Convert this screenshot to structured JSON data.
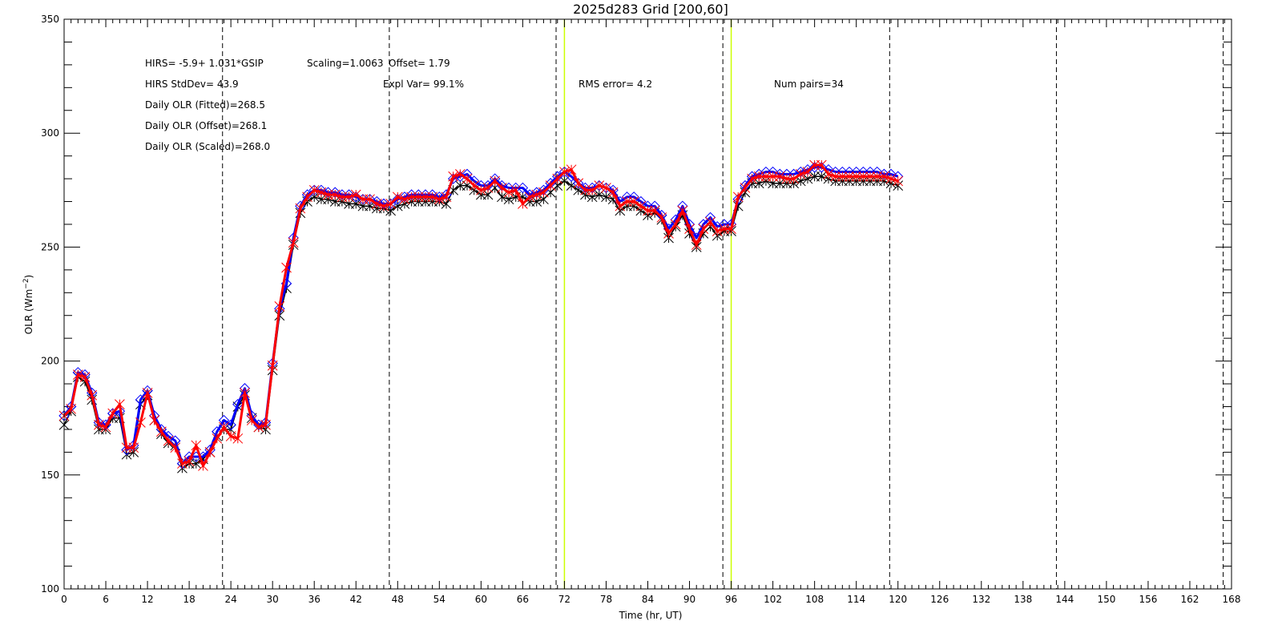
{
  "chart_data": {
    "type": "line",
    "title": "2025d283 Grid [200,60]",
    "xlabel": "Time (hr, UT)",
    "ylabel_main": "OLR (Wm",
    "ylabel_sup": "−2",
    "ylabel_close": ")",
    "xlim": [
      0,
      168
    ],
    "ylim": [
      100,
      350
    ],
    "xticks": [
      0,
      6,
      12,
      18,
      24,
      30,
      36,
      42,
      48,
      54,
      60,
      66,
      72,
      78,
      84,
      90,
      96,
      102,
      108,
      114,
      120,
      126,
      132,
      138,
      144,
      150,
      156,
      162,
      168
    ],
    "yticks": [
      100,
      150,
      200,
      250,
      300,
      350
    ],
    "grid": false,
    "dashed_vlines": [
      22.8,
      46.8,
      70.8,
      94.8,
      118.8,
      142.8,
      166.8
    ],
    "yellow_vlines": [
      72,
      96
    ],
    "colors": {
      "black": "#000000",
      "blue": "#0000ff",
      "red": "#ff0000",
      "yellow": "#ccff00"
    },
    "annotations": {
      "line1_a": "HIRS=   -5.9+  1.031*GSIP",
      "line1_b": "Scaling=1.0063",
      "line1_c": "Offset=  1.79",
      "stddev": "HIRS StdDev= 43.9",
      "explvar": "Expl Var= 99.1%",
      "rms": "RMS error=  4.2",
      "numpairs": "Num pairs=34",
      "fitted": "Daily OLR (Fitted)=268.5",
      "offset": "Daily OLR (Offset)=268.1",
      "scaled": "Daily OLR (Scaled)=268.0"
    },
    "series": [
      {
        "marker": "asterisk",
        "color": "black",
        "x": [
          0,
          1,
          2,
          3,
          4,
          5,
          6,
          7,
          8,
          9,
          10,
          11,
          12,
          13,
          14,
          15,
          16,
          17,
          18,
          19,
          20,
          21,
          22,
          23,
          24,
          25,
          26,
          27,
          28,
          29,
          30,
          31,
          32,
          33,
          34,
          35,
          36,
          37,
          38,
          39,
          40,
          41,
          42,
          43,
          44,
          45,
          46,
          47,
          48,
          49,
          50,
          51,
          52,
          53,
          54,
          55,
          56,
          57,
          58,
          59,
          60,
          61,
          62,
          63,
          64,
          65,
          66,
          67,
          68,
          69,
          70,
          71,
          72,
          73,
          74,
          75,
          76,
          77,
          78,
          79,
          80,
          81,
          82,
          83,
          84,
          85,
          86,
          87,
          88,
          89,
          90,
          91,
          92,
          93,
          94,
          95,
          96,
          97,
          98,
          99,
          100,
          101,
          102,
          103,
          104,
          105,
          106,
          107,
          108,
          109,
          110,
          111,
          112,
          113,
          114,
          115,
          116,
          117,
          118,
          119,
          120
        ],
        "y": [
          172,
          178,
          193,
          191,
          183,
          170,
          170,
          175,
          175,
          159,
          160,
          181,
          185,
          174,
          168,
          164,
          163,
          153,
          155,
          155,
          157,
          160,
          167,
          170,
          170,
          180,
          185,
          175,
          171,
          170,
          196,
          220,
          232,
          251,
          265,
          270,
          272,
          271,
          271,
          270,
          270,
          269,
          269,
          268,
          268,
          267,
          267,
          266,
          268,
          269,
          270,
          270,
          270,
          270,
          270,
          269,
          275,
          277,
          277,
          275,
          273,
          273,
          276,
          272,
          271,
          272,
          272,
          270,
          270,
          271,
          274,
          277,
          279,
          277,
          275,
          273,
          272,
          273,
          272,
          271,
          266,
          268,
          268,
          266,
          264,
          265,
          262,
          254,
          259,
          264,
          256,
          250,
          256,
          259,
          255,
          257,
          257,
          268,
          274,
          278,
          278,
          279,
          278,
          278,
          278,
          278,
          279,
          280,
          281,
          281,
          280,
          279,
          279,
          279,
          279,
          279,
          279,
          279,
          279,
          278,
          277
        ]
      },
      {
        "marker": "diamond",
        "color": "blue",
        "x": [
          0,
          1,
          2,
          3,
          4,
          5,
          6,
          7,
          8,
          9,
          10,
          11,
          12,
          13,
          14,
          15,
          16,
          17,
          18,
          19,
          20,
          21,
          22,
          23,
          24,
          25,
          26,
          27,
          28,
          29,
          30,
          31,
          32,
          33,
          34,
          35,
          36,
          37,
          38,
          39,
          40,
          41,
          42,
          43,
          44,
          45,
          46,
          47,
          48,
          49,
          50,
          51,
          52,
          53,
          54,
          55,
          56,
          57,
          58,
          59,
          60,
          61,
          62,
          63,
          64,
          65,
          66,
          67,
          68,
          69,
          70,
          71,
          72,
          73,
          74,
          75,
          76,
          77,
          78,
          79,
          80,
          81,
          82,
          83,
          84,
          85,
          86,
          87,
          88,
          89,
          90,
          91,
          92,
          93,
          94,
          95,
          96,
          97,
          98,
          99,
          100,
          101,
          102,
          103,
          104,
          105,
          106,
          107,
          108,
          109,
          110,
          111,
          112,
          113,
          114,
          115,
          116,
          117,
          118,
          119,
          120
        ],
        "y": [
          176,
          180,
          195,
          194,
          186,
          173,
          172,
          177,
          178,
          161,
          163,
          183,
          187,
          176,
          170,
          167,
          165,
          155,
          158,
          158,
          158,
          161,
          169,
          174,
          172,
          181,
          188,
          176,
          172,
          173,
          199,
          223,
          234,
          254,
          268,
          273,
          275,
          275,
          274,
          274,
          273,
          273,
          272,
          271,
          271,
          270,
          269,
          269,
          271,
          272,
          273,
          273,
          273,
          273,
          272,
          273,
          280,
          281,
          282,
          279,
          277,
          277,
          280,
          277,
          276,
          276,
          276,
          273,
          274,
          275,
          278,
          281,
          283,
          281,
          278,
          276,
          276,
          277,
          276,
          275,
          270,
          272,
          272,
          270,
          268,
          268,
          264,
          258,
          262,
          268,
          260,
          254,
          260,
          263,
          259,
          260,
          260,
          271,
          277,
          281,
          282,
          283,
          283,
          282,
          282,
          282,
          283,
          284,
          285,
          285,
          284,
          283,
          283,
          283,
          283,
          283,
          283,
          283,
          282,
          282,
          281
        ]
      },
      {
        "marker": "asterisk",
        "color": "red",
        "x": [
          0,
          1,
          2,
          3,
          4,
          5,
          6,
          7,
          8,
          9,
          10,
          11,
          12,
          13,
          14,
          15,
          16,
          17,
          18,
          19,
          20,
          21,
          22,
          23,
          24,
          25,
          26,
          27,
          28,
          29,
          30,
          31,
          32,
          33,
          34,
          35,
          36,
          37,
          38,
          39,
          40,
          41,
          42,
          43,
          44,
          45,
          46,
          47,
          48,
          49,
          50,
          51,
          52,
          53,
          54,
          55,
          56,
          57,
          58,
          59,
          60,
          61,
          62,
          63,
          64,
          65,
          66,
          67,
          68,
          69,
          70,
          71,
          72,
          73,
          74,
          75,
          76,
          77,
          78,
          79,
          80,
          81,
          82,
          83,
          84,
          85,
          86,
          87,
          88,
          89,
          90,
          91,
          92,
          93,
          94,
          95,
          96,
          97,
          98,
          99,
          100,
          101,
          102,
          103,
          104,
          105,
          106,
          107,
          108,
          109,
          110,
          111,
          112,
          113,
          114,
          115,
          116,
          117,
          118,
          119,
          120
        ],
        "y": [
          176,
          179,
          194,
          193,
          185,
          172,
          171,
          177,
          181,
          162,
          162,
          173,
          186,
          174,
          169,
          165,
          162,
          155,
          156,
          163,
          154,
          160,
          166,
          171,
          167,
          166,
          186,
          174,
          171,
          172,
          198,
          224,
          241,
          252,
          267,
          272,
          275,
          274,
          273,
          273,
          272,
          272,
          273,
          271,
          271,
          269,
          268,
          269,
          272,
          271,
          272,
          272,
          272,
          272,
          271,
          272,
          281,
          282,
          280,
          277,
          275,
          276,
          279,
          276,
          274,
          275,
          269,
          272,
          273,
          274,
          277,
          280,
          283,
          284,
          278,
          275,
          275,
          277,
          276,
          274,
          268,
          270,
          270,
          268,
          266,
          266,
          263,
          256,
          260,
          266,
          258,
          251,
          258,
          261,
          257,
          258,
          258,
          272,
          276,
          280,
          281,
          281,
          281,
          281,
          280,
          280,
          282,
          283,
          286,
          286,
          282,
          281,
          281,
          281,
          281,
          281,
          281,
          281,
          281,
          280,
          279
        ]
      }
    ]
  }
}
